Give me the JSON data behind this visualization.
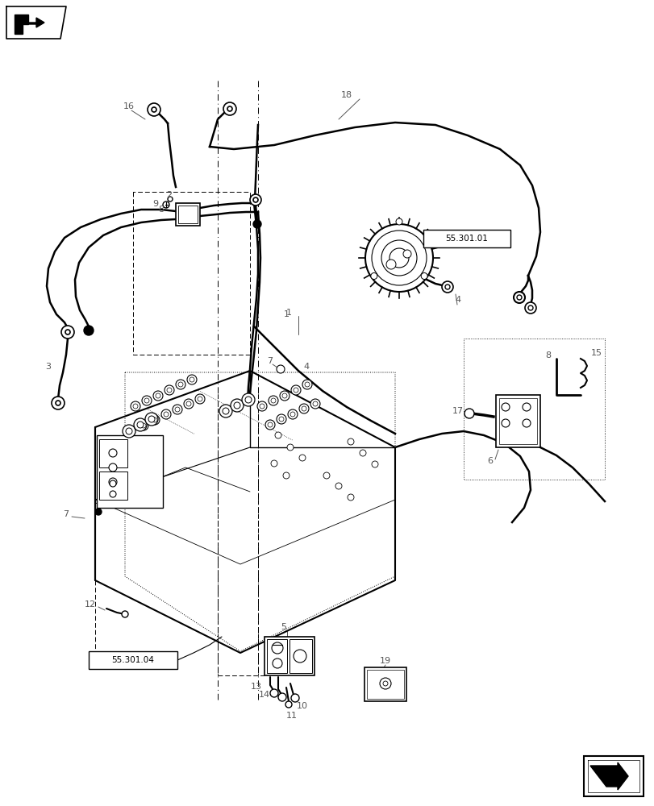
{
  "bg_color": "#ffffff",
  "line_color": "#000000",
  "box_label_1": "55.301.01",
  "box_label_2": "55.301.04",
  "fig_width": 8.12,
  "fig_height": 10.0,
  "dpi": 100
}
